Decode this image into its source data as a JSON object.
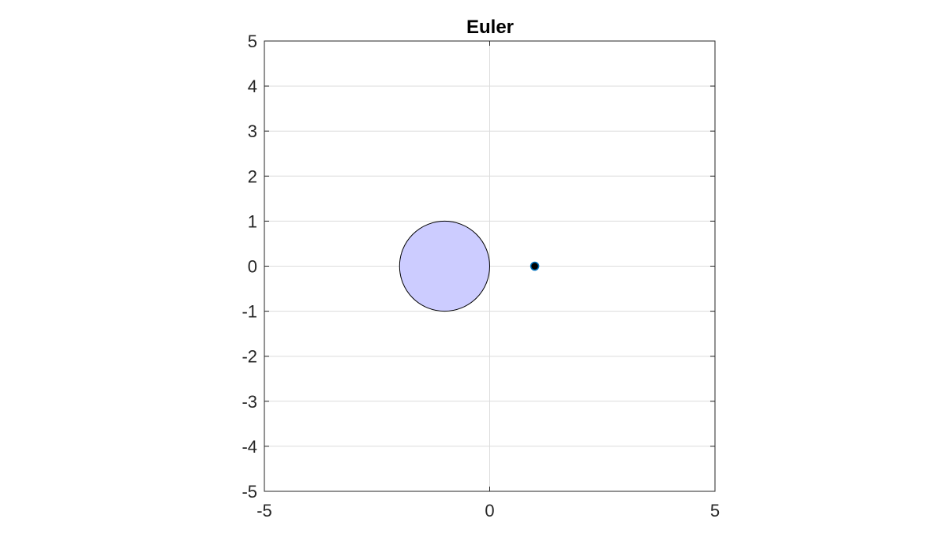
{
  "chart_data": {
    "type": "scatter",
    "title": "Euler",
    "xlabel": "",
    "ylabel": "",
    "xlim": [
      -5,
      5
    ],
    "ylim": [
      -5,
      5
    ],
    "xticks": [
      -5,
      0,
      5
    ],
    "yticks": [
      5,
      4,
      3,
      2,
      1,
      0,
      -1,
      -2,
      -3,
      -4,
      -5
    ],
    "grid": true,
    "aspect": "equal",
    "shapes": [
      {
        "kind": "circle",
        "center": [
          -1,
          0
        ],
        "radius": 1,
        "fill": "#ccccff",
        "stroke": "#000000"
      }
    ],
    "points": [
      {
        "x": 1,
        "y": 0,
        "fill": "#000000",
        "stroke": "#0072bd"
      }
    ]
  }
}
